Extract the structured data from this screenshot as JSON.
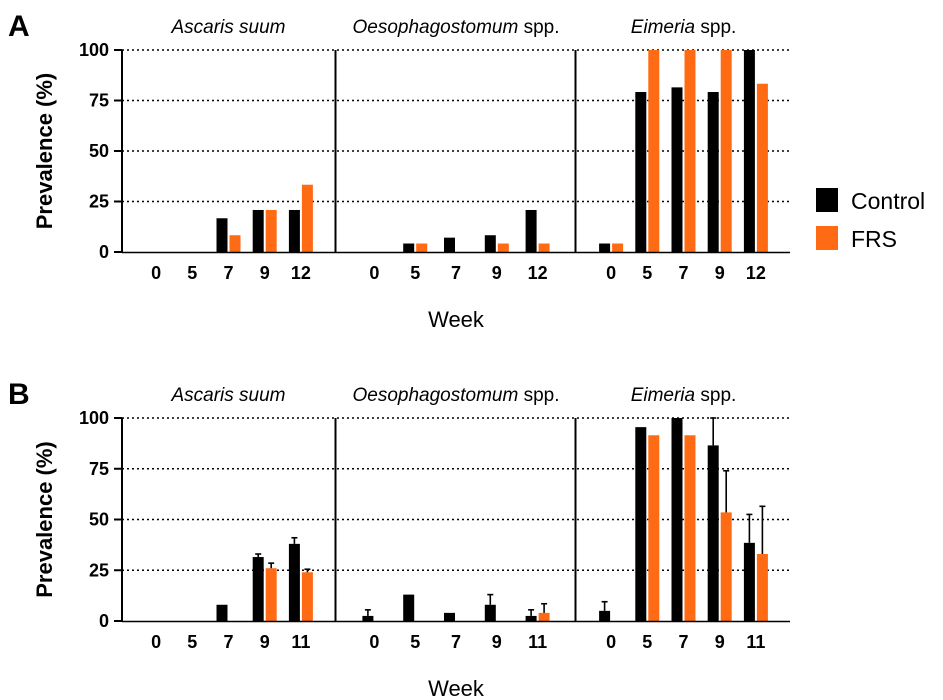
{
  "chart_data": [
    {
      "type": "bar",
      "panel_label": "A",
      "ylabel": "Prevalence (%)",
      "xlabel": "Week",
      "ylim": [
        0,
        100
      ],
      "yticks": [
        0,
        25,
        50,
        75,
        100
      ],
      "grid": "dotted horizontal",
      "facets": [
        {
          "title_italic": "Ascaris suum",
          "title_rest": "",
          "categories": [
            "0",
            "5",
            "7",
            "9",
            "12"
          ],
          "series": [
            {
              "name": "Control",
              "values": [
                0,
                0,
                16.7,
                20.8,
                20.8
              ]
            },
            {
              "name": "FRS",
              "values": [
                0,
                0,
                8.3,
                20.8,
                33.3
              ]
            }
          ]
        },
        {
          "title_italic": "Oesophagostomum",
          "title_rest": " spp.",
          "categories": [
            "0",
            "5",
            "7",
            "9",
            "12"
          ],
          "series": [
            {
              "name": "Control",
              "values": [
                0,
                4.2,
                7.1,
                8.3,
                20.8
              ]
            },
            {
              "name": "FRS",
              "values": [
                0,
                4.2,
                0,
                4.2,
                4.2
              ]
            }
          ]
        },
        {
          "title_italic": "Eimeria",
          "title_rest": " spp.",
          "categories": [
            "0",
            "5",
            "7",
            "9",
            "12"
          ],
          "series": [
            {
              "name": "Control",
              "values": [
                4.2,
                79.2,
                81.5,
                79.2,
                100
              ]
            },
            {
              "name": "FRS",
              "values": [
                4.2,
                100,
                100,
                100,
                83.3
              ]
            }
          ]
        }
      ]
    },
    {
      "type": "bar",
      "panel_label": "B",
      "ylabel": "Prevalence (%)",
      "xlabel": "Week",
      "ylim": [
        0,
        100
      ],
      "yticks": [
        0,
        25,
        50,
        75,
        100
      ],
      "grid": "dotted horizontal",
      "facets": [
        {
          "title_italic": "Ascaris suum",
          "title_rest": "",
          "categories": [
            "0",
            "5",
            "7",
            "9",
            "11"
          ],
          "series": [
            {
              "name": "Control",
              "values": [
                0,
                0,
                8,
                31.5,
                38
              ],
              "errors": [
                0,
                0,
                0,
                1.5,
                3
              ]
            },
            {
              "name": "FRS",
              "values": [
                0,
                0,
                0,
                26,
                24
              ],
              "errors": [
                0,
                0,
                0,
                2.5,
                1.5
              ]
            }
          ]
        },
        {
          "title_italic": "Oesophagostomum",
          "title_rest": " spp.",
          "categories": [
            "0",
            "5",
            "7",
            "9",
            "11"
          ],
          "series": [
            {
              "name": "Control",
              "values": [
                2.5,
                13,
                4,
                8,
                2.5
              ],
              "errors": [
                3,
                0,
                0,
                5,
                3
              ]
            },
            {
              "name": "FRS",
              "values": [
                0,
                0,
                0,
                0,
                4
              ],
              "errors": [
                0,
                0,
                0,
                0,
                4.5
              ]
            }
          ]
        },
        {
          "title_italic": "Eimeria",
          "title_rest": " spp.",
          "categories": [
            "0",
            "5",
            "7",
            "9",
            "11"
          ],
          "series": [
            {
              "name": "Control",
              "values": [
                5,
                95.5,
                100,
                86.5,
                38.5
              ],
              "errors": [
                4.5,
                0,
                0,
                13.5,
                14
              ]
            },
            {
              "name": "FRS",
              "values": [
                0,
                91.5,
                91.5,
                53.5,
                33
              ],
              "errors": [
                0,
                0,
                0,
                20.5,
                23.5
              ]
            }
          ]
        }
      ]
    }
  ],
  "legend": [
    {
      "name": "Control",
      "color": "#000000"
    },
    {
      "name": "FRS",
      "color": "#ff6a14"
    }
  ]
}
